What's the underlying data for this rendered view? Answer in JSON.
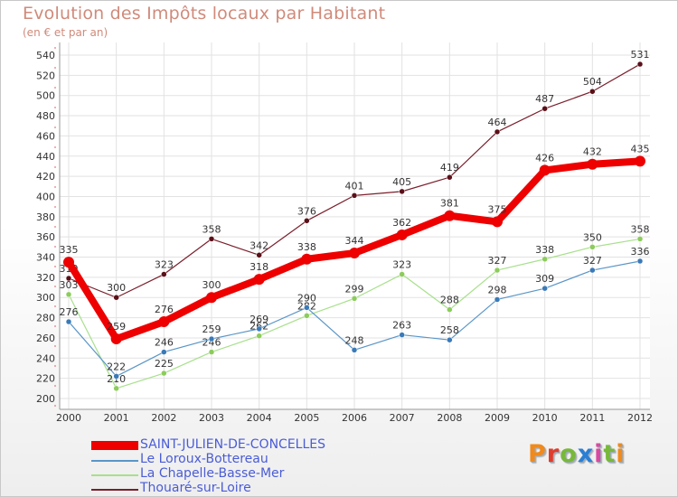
{
  "chart_data": {
    "type": "line",
    "title": "Evolution des Impôts locaux par Habitant",
    "subtitle": "(en € et par an)",
    "ylim": [
      200,
      540
    ],
    "y_ticks": [
      200,
      220,
      240,
      260,
      280,
      300,
      320,
      340,
      360,
      380,
      400,
      420,
      440,
      460,
      480,
      500,
      520,
      540
    ],
    "categories": [
      "2000",
      "2001",
      "2002",
      "2003",
      "2004",
      "2005",
      "2006",
      "2007",
      "2008",
      "2009",
      "2010",
      "2011",
      "2012"
    ],
    "grid": true,
    "legend_position": "bottom-left",
    "series": [
      {
        "name": "Thouaré-sur-Loire",
        "color": "#7a1f2b",
        "marker": "#5a1018",
        "values": [
          319,
          300,
          323,
          358,
          342,
          376,
          401,
          405,
          419,
          464,
          487,
          504,
          531
        ]
      },
      {
        "name": "La Chapelle-Basse-Mer",
        "color": "#a8e08c",
        "marker": "#8ccc5c",
        "values": [
          303,
          210,
          225,
          246,
          262,
          282,
          299,
          323,
          288,
          327,
          338,
          350,
          358
        ]
      },
      {
        "name": "Le Loroux-Bottereau",
        "color": "#5a96c8",
        "marker": "#3a7ab8",
        "values": [
          276,
          222,
          246,
          259,
          269,
          290,
          248,
          263,
          258,
          298,
          309,
          327,
          336
        ]
      },
      {
        "name": "SAINT-JULIEN-DE-CONCELLES",
        "color": "#ee0000",
        "marker": "#ee0000",
        "values": [
          335,
          259,
          276,
          300,
          318,
          338,
          344,
          362,
          381,
          375,
          426,
          432,
          435
        ],
        "highlight": true
      }
    ]
  },
  "legend": [
    {
      "label": "SAINT-JULIEN-DE-CONCELLES",
      "color": "#ee0000"
    },
    {
      "label": "Le Loroux-Bottereau",
      "color": "#5a96c8"
    },
    {
      "label": "La Chapelle-Basse-Mer",
      "color": "#a8e08c"
    },
    {
      "label": "Thouaré-sur-Loire",
      "color": "#7a1f2b"
    }
  ],
  "brand": {
    "letters": [
      "P",
      "r",
      "o",
      "x",
      "i",
      "t",
      "i"
    ]
  }
}
